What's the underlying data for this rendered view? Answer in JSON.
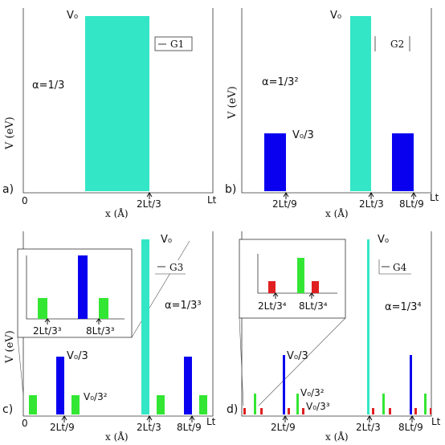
{
  "colors": {
    "cyan": "#33e6c6",
    "blue": "#0a00f0",
    "green": "#33e633",
    "red": "#e02020",
    "axis": "#333333",
    "text": "#111111"
  },
  "panels": {
    "a": {
      "panel_label": "a)",
      "y_axis_label": "V (eV)",
      "x_axis_label": "x (Å)",
      "alpha_label": "α=1/3",
      "v0_label": "V₀",
      "legend": "G1",
      "tick_zero": "0",
      "tick_2lt3": "2Lt/3",
      "tick_lt": "Lt"
    },
    "b": {
      "panel_label": "b)",
      "y_axis_label": "V (eV)",
      "x_axis_label": "x (Å)",
      "alpha_label": "α=1/3²",
      "v0_label": "V₀",
      "v0_third_label": "V₀/3",
      "legend": "G2",
      "tick_2lt9": "2Lt/9",
      "tick_2lt3": "2Lt/3",
      "tick_8lt9": "8Lt/9",
      "tick_lt": "Lt"
    },
    "c": {
      "panel_label": "c)",
      "y_axis_label": "V (eV)",
      "x_axis_label": "x (Å)",
      "alpha_label": "α=1/3³",
      "v0_label": "V₀",
      "v0_third_label": "V₀/3",
      "v0_ninth_label": "V₀/3²",
      "legend": "G3",
      "tick_zero": "0",
      "tick_2lt9": "2Lt/9",
      "tick_2lt3": "2Lt/3",
      "tick_8lt9": "8Lt/9",
      "tick_lt": "Lt",
      "inset_tick_left": "2Lt/3³",
      "inset_tick_right": "8Lt/3³"
    },
    "d": {
      "panel_label": "d)",
      "x_axis_label": "x (Å)",
      "alpha_label": "α=1/3⁴",
      "v0_label": "V₀",
      "v0_third_label": "V₀/3",
      "v0_ninth_label": "V₀/3²",
      "v0_27_label": "V₀/3³",
      "legend": "G4",
      "tick_2lt9": "2Lt/9",
      "tick_2lt3": "2Lt/3",
      "tick_8lt9": "8Lt/9",
      "tick_lt": "Lt",
      "inset_tick_left": "2Lt/3⁴",
      "inset_tick_right": "8Lt/3⁴"
    }
  }
}
